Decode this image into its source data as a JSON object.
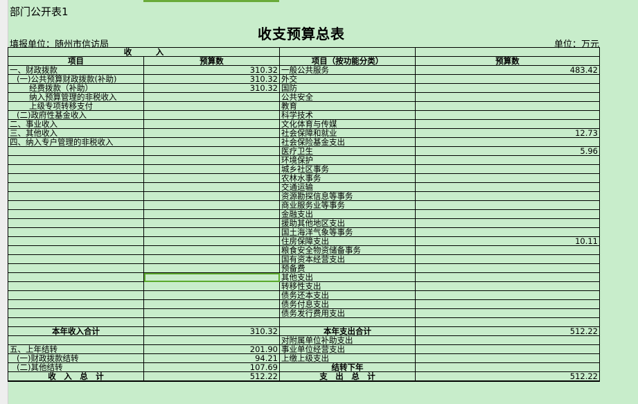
{
  "sheet_title": "部门公开表1",
  "title": "收支预算总表",
  "reporting_unit": "填报单位：随州市信访局",
  "unit": "单位：万元",
  "header": {
    "income_group": "收　　　入",
    "income_item": "项目",
    "income_amount": "预算数",
    "expense_item": "项目（按功能分类）",
    "expense_amount": "预算数"
  },
  "rows": [
    {
      "inc": "一、财政拨款",
      "inc_val": "310.32",
      "exp": "一般公共服务",
      "exp_val": "483.42"
    },
    {
      "inc": "(一)公共预算财政拨款(补助)",
      "inc_val": "310.32",
      "exp": "外交",
      "exp_val": ""
    },
    {
      "inc": "经费拨款（补助）",
      "inc_val": "310.32",
      "exp": "国防",
      "exp_val": ""
    },
    {
      "inc": "纳入预算管理的非税收入",
      "inc_val": "",
      "exp": "公共安全",
      "exp_val": ""
    },
    {
      "inc": "上级专项转移支付",
      "inc_val": "",
      "exp": "教育",
      "exp_val": ""
    },
    {
      "inc": "(二)政府性基金收入",
      "inc_val": "",
      "exp": "科学技术",
      "exp_val": ""
    },
    {
      "inc": "二、事业收入",
      "inc_val": "",
      "exp": "文化体育与传媒",
      "exp_val": ""
    },
    {
      "inc": "三、其他收入",
      "inc_val": "",
      "exp": "社会保障和就业",
      "exp_val": "12.73"
    },
    {
      "inc": "四、纳入专户管理的非税收入",
      "inc_val": "",
      "exp": "社会保险基金支出",
      "exp_val": ""
    },
    {
      "inc": "",
      "inc_val": "",
      "exp": "医疗卫生",
      "exp_val": "5.96"
    },
    {
      "inc": "",
      "inc_val": "",
      "exp": "环境保护",
      "exp_val": ""
    },
    {
      "inc": "",
      "inc_val": "",
      "exp": "城乡社区事务",
      "exp_val": ""
    },
    {
      "inc": "",
      "inc_val": "",
      "exp": "农林水事务",
      "exp_val": ""
    },
    {
      "inc": "",
      "inc_val": "",
      "exp": "交通运输",
      "exp_val": ""
    },
    {
      "inc": "",
      "inc_val": "",
      "exp": "资源勘探信息等事务",
      "exp_val": ""
    },
    {
      "inc": "",
      "inc_val": "",
      "exp": "商业服务业等事务",
      "exp_val": ""
    },
    {
      "inc": "",
      "inc_val": "",
      "exp": "金融支出",
      "exp_val": ""
    },
    {
      "inc": "",
      "inc_val": "",
      "exp": "援助其他地区支出",
      "exp_val": ""
    },
    {
      "inc": "",
      "inc_val": "",
      "exp": "国土海洋气象等事务",
      "exp_val": ""
    },
    {
      "inc": "",
      "inc_val": "",
      "exp": "住房保障支出",
      "exp_val": "10.11"
    },
    {
      "inc": "",
      "inc_val": "",
      "exp": "粮食安全物资储备事务",
      "exp_val": ""
    },
    {
      "inc": "",
      "inc_val": "",
      "exp": "国有资本经营支出",
      "exp_val": ""
    },
    {
      "inc": "",
      "inc_val": "",
      "exp": "预备费",
      "exp_val": ""
    },
    {
      "inc": "",
      "inc_val": "",
      "exp": "其他支出",
      "exp_val": ""
    },
    {
      "inc": "",
      "inc_val": "",
      "exp": "转移性支出",
      "exp_val": ""
    },
    {
      "inc": "",
      "inc_val": "",
      "exp": "债务还本支出",
      "exp_val": ""
    },
    {
      "inc": "",
      "inc_val": "",
      "exp": "债务付息支出",
      "exp_val": ""
    },
    {
      "inc": "",
      "inc_val": "",
      "exp": "债务发行费用支出",
      "exp_val": ""
    },
    {
      "inc": "",
      "inc_val": "",
      "exp": "",
      "exp_val": ""
    },
    {
      "inc": "本年收入合计",
      "inc_val": "310.32",
      "exp": "本年支出合计",
      "exp_val": "512.22",
      "bold": true
    },
    {
      "inc": "",
      "inc_val": "",
      "exp": "对附属单位补助支出",
      "exp_val": ""
    },
    {
      "inc": "五、上年结转",
      "inc_val": "201.90",
      "exp": "事业单位经营支出",
      "exp_val": ""
    },
    {
      "inc": "(一)财政拨款结转",
      "inc_val": "94.21",
      "exp": "上缴上级支出",
      "exp_val": ""
    },
    {
      "inc": "(二)其他结转",
      "inc_val": "107.69",
      "exp": "结转下年",
      "exp_val": "",
      "exp_bold": true
    },
    {
      "inc": "收　入　总　计",
      "inc_val": "512.22",
      "exp": "支　出　总　计",
      "exp_val": "512.22",
      "bold": true
    }
  ]
}
